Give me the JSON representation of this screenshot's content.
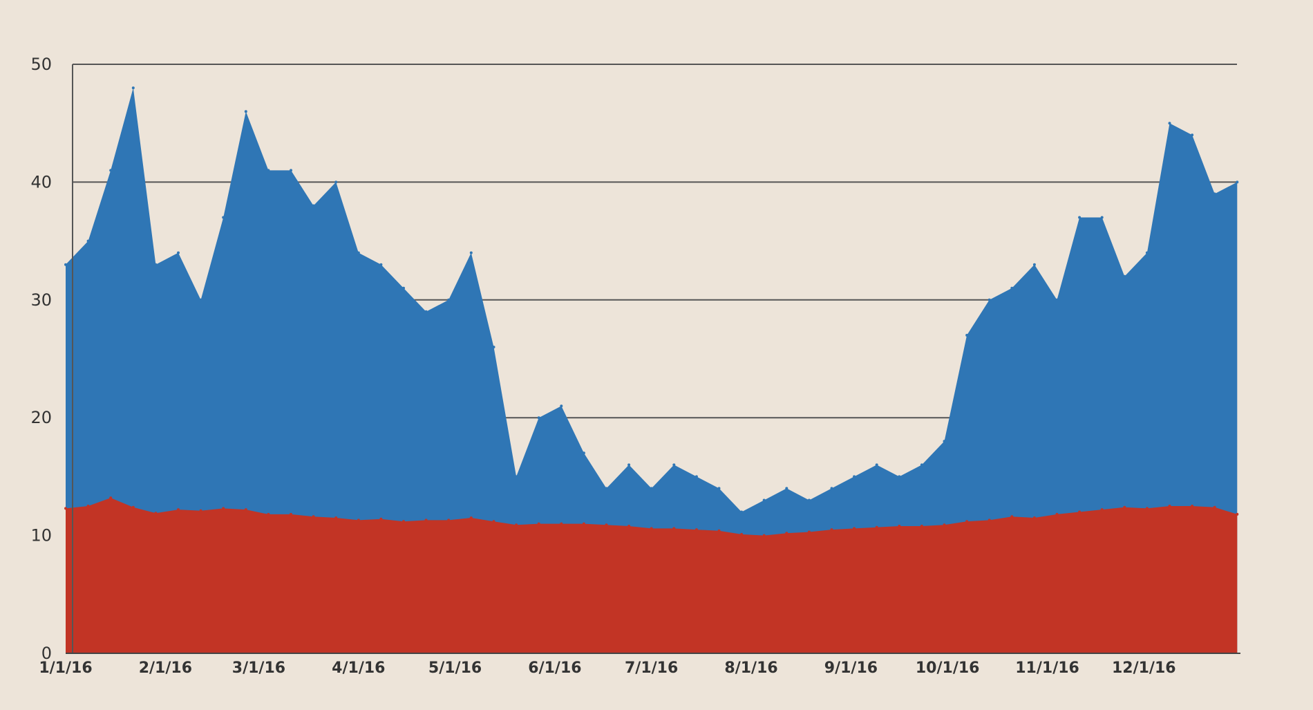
{
  "chart_data": {
    "type": "area",
    "title": "",
    "xlabel": "",
    "ylabel": "",
    "ylim": [
      0,
      50
    ],
    "y_ticks": [
      "0",
      "10",
      "20",
      "30",
      "40",
      "50"
    ],
    "x_tick_labels": [
      "1/1/16",
      "2/1/16",
      "3/1/16",
      "4/1/16",
      "5/1/16",
      "6/1/16",
      "7/1/16",
      "8/1/16",
      "9/1/16",
      "10/1/16",
      "11/1/16",
      "12/1/16"
    ],
    "grid": true,
    "legend": "none",
    "stacked": false,
    "x": [
      "1/1/16",
      "1/8/16",
      "1/15/16",
      "1/22/16",
      "1/29/16",
      "2/5/16",
      "2/12/16",
      "2/19/16",
      "2/26/16",
      "3/4/16",
      "3/11/16",
      "3/18/16",
      "3/25/16",
      "4/1/16",
      "4/8/16",
      "4/15/16",
      "4/22/16",
      "4/29/16",
      "5/6/16",
      "5/13/16",
      "5/20/16",
      "5/27/16",
      "6/3/16",
      "6/10/16",
      "6/17/16",
      "6/24/16",
      "7/1/16",
      "7/8/16",
      "7/15/16",
      "7/22/16",
      "7/29/16",
      "8/5/16",
      "8/12/16",
      "8/19/16",
      "8/26/16",
      "9/2/16",
      "9/9/16",
      "9/16/16",
      "9/23/16",
      "9/30/16",
      "10/7/16",
      "10/14/16",
      "10/21/16",
      "10/28/16",
      "11/4/16",
      "11/11/16",
      "11/18/16",
      "11/25/16",
      "12/2/16",
      "12/9/16",
      "12/16/16",
      "12/23/16",
      "12/30/16"
    ],
    "series": [
      {
        "color": "#2f76b5",
        "values": [
          33,
          35,
          41,
          48,
          33,
          34,
          30,
          37,
          46,
          41,
          41,
          38,
          40,
          34,
          33,
          31,
          29,
          30,
          34,
          26,
          15,
          20,
          21,
          17,
          14,
          16,
          14,
          16,
          15,
          14,
          12,
          13,
          14,
          13,
          14,
          15,
          16,
          15,
          16,
          18,
          27,
          30,
          31,
          33,
          30,
          37,
          37,
          32,
          34,
          45,
          44,
          39,
          40
        ]
      },
      {
        "color": "#c23425",
        "values": [
          12.3,
          12.5,
          13.2,
          12.4,
          11.9,
          12.2,
          12.1,
          12.3,
          12.2,
          11.8,
          11.8,
          11.6,
          11.5,
          11.3,
          11.4,
          11.2,
          11.3,
          11.3,
          11.5,
          11.2,
          10.9,
          11.0,
          11.0,
          11.0,
          10.9,
          10.8,
          10.6,
          10.6,
          10.5,
          10.4,
          10.1,
          10.0,
          10.2,
          10.3,
          10.5,
          10.6,
          10.7,
          10.8,
          10.8,
          10.9,
          11.2,
          11.3,
          11.6,
          11.5,
          11.8,
          12.0,
          12.2,
          12.4,
          12.3,
          12.5,
          12.5,
          12.4,
          11.8
        ]
      }
    ]
  }
}
